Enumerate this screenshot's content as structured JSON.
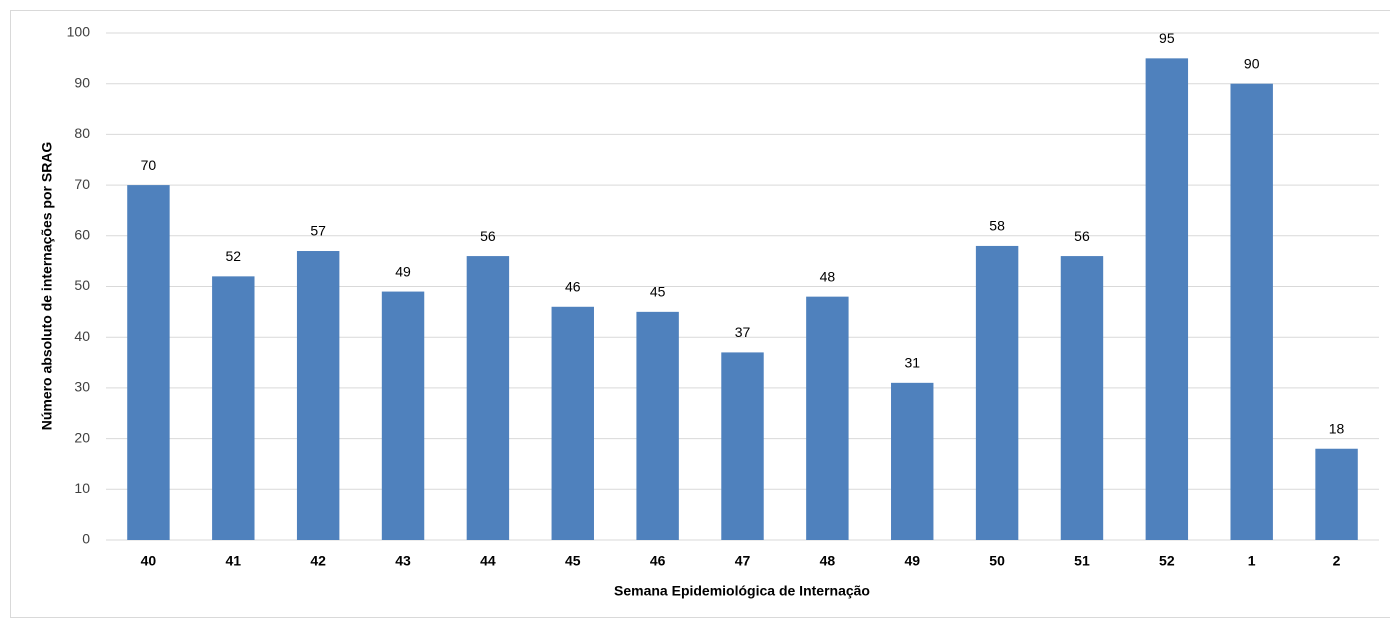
{
  "chart_data": {
    "type": "bar",
    "x_label": "Semana Epidemiológica de Internação",
    "y_label": "Número absoluto de internações por SRAG",
    "categories": [
      "40",
      "41",
      "42",
      "43",
      "44",
      "45",
      "46",
      "47",
      "48",
      "49",
      "50",
      "51",
      "52",
      "1",
      "2"
    ],
    "values": [
      70,
      52,
      57,
      49,
      56,
      46,
      45,
      37,
      48,
      31,
      58,
      56,
      95,
      90,
      18
    ],
    "color": "#4f81bd",
    "ylim": [
      0,
      100
    ],
    "yticks": [
      0,
      10,
      20,
      30,
      40,
      50,
      60,
      70,
      80,
      90,
      100
    ],
    "grid": true
  }
}
